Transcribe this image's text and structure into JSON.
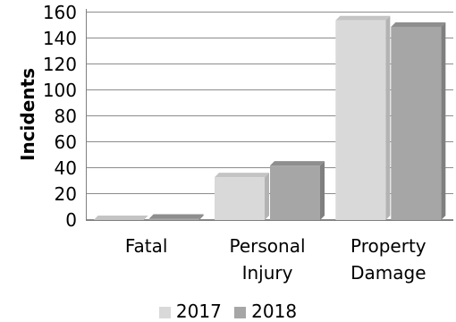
{
  "chart_data": {
    "type": "bar",
    "categories": [
      [
        "Fatal"
      ],
      [
        "Personal",
        "Injury"
      ],
      [
        "Property",
        "Damage"
      ]
    ],
    "series": [
      {
        "name": "2017",
        "values": [
          0,
          33,
          154
        ],
        "color": "#d9d9d9",
        "side_color": "#b3b3b3",
        "top_color": "#c4c4c4"
      },
      {
        "name": "2018",
        "values": [
          1,
          42,
          149
        ],
        "color": "#a6a6a6",
        "side_color": "#7f7f7f",
        "top_color": "#8e8e8e"
      }
    ],
    "title": "",
    "xlabel": "",
    "ylabel": "Incidents",
    "ylim": [
      0,
      160
    ],
    "yticks": [
      0,
      20,
      40,
      60,
      80,
      100,
      120,
      140,
      160
    ],
    "grid": true,
    "legend_position": "bottom",
    "bar_style": "3d"
  }
}
